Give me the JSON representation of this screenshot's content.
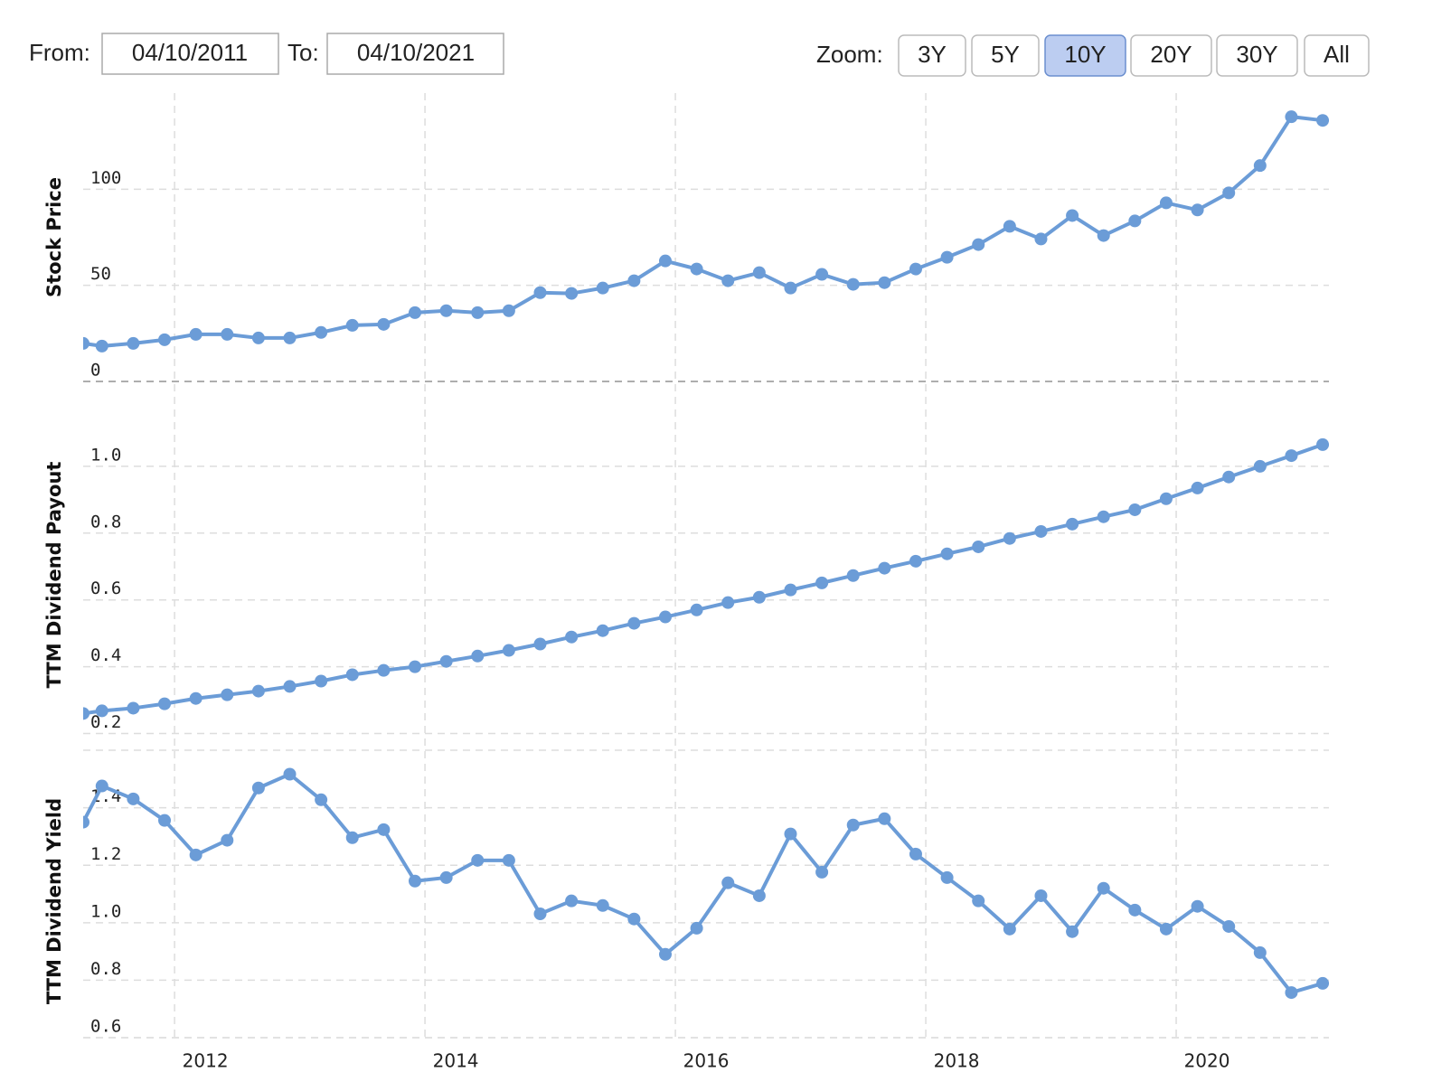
{
  "controls": {
    "from_label": "From:",
    "from_value": "04/10/2011",
    "to_label": "To:",
    "to_value": "04/10/2021",
    "zoom_label": "Zoom:",
    "zoom_options": [
      "3Y",
      "5Y",
      "10Y",
      "20Y",
      "30Y",
      "All"
    ],
    "zoom_active": "10Y"
  },
  "chart_data": [
    {
      "type": "line",
      "y_label": "Stock Price",
      "color": "#6b9cd7",
      "grid": true,
      "x": [
        2011.27,
        2011.42,
        2011.67,
        2011.92,
        2012.17,
        2012.42,
        2012.67,
        2012.92,
        2013.17,
        2013.42,
        2013.67,
        2013.92,
        2014.17,
        2014.42,
        2014.67,
        2014.92,
        2015.17,
        2015.42,
        2015.67,
        2015.92,
        2016.17,
        2016.42,
        2016.67,
        2016.92,
        2017.17,
        2017.42,
        2017.67,
        2017.92,
        2018.17,
        2018.42,
        2018.67,
        2018.92,
        2019.17,
        2019.42,
        2019.67,
        2019.92,
        2020.17,
        2020.42,
        2020.67,
        2020.92,
        2021.17
      ],
      "values": [
        19.8,
        18.4,
        19.8,
        21.7,
        24.5,
        24.5,
        22.6,
        22.6,
        25.5,
        29.2,
        29.7,
        35.8,
        36.8,
        35.8,
        36.8,
        46.2,
        45.8,
        48.6,
        52.4,
        62.7,
        58.5,
        52.4,
        56.6,
        48.6,
        55.7,
        50.5,
        51.4,
        58.5,
        64.6,
        71.2,
        80.7,
        74.1,
        86.3,
        75.9,
        83.5,
        92.9,
        89.2,
        98.1,
        112.3,
        137.7,
        135.8
      ],
      "xlim": [
        2011.27,
        2021.22
      ],
      "ylim": [
        0,
        150
      ],
      "yticks": [
        0,
        50,
        100
      ]
    },
    {
      "type": "line",
      "y_label": "TTM Dividend Payout",
      "color": "#6b9cd7",
      "grid": true,
      "x": [
        2011.27,
        2011.42,
        2011.67,
        2011.92,
        2012.17,
        2012.42,
        2012.67,
        2012.92,
        2013.17,
        2013.42,
        2013.67,
        2013.92,
        2014.17,
        2014.42,
        2014.67,
        2014.92,
        2015.17,
        2015.42,
        2015.67,
        2015.92,
        2016.17,
        2016.42,
        2016.67,
        2016.92,
        2017.17,
        2017.42,
        2017.67,
        2017.92,
        2018.17,
        2018.42,
        2018.67,
        2018.92,
        2019.17,
        2019.42,
        2019.67,
        2019.92,
        2020.17,
        2020.42,
        2020.67,
        2020.92,
        2021.17
      ],
      "values": [
        0.26,
        0.268,
        0.276,
        0.289,
        0.305,
        0.316,
        0.327,
        0.341,
        0.357,
        0.376,
        0.389,
        0.4,
        0.416,
        0.432,
        0.449,
        0.468,
        0.489,
        0.508,
        0.53,
        0.549,
        0.57,
        0.592,
        0.608,
        0.63,
        0.651,
        0.673,
        0.695,
        0.716,
        0.738,
        0.759,
        0.784,
        0.805,
        0.827,
        0.849,
        0.87,
        0.903,
        0.935,
        0.968,
        1.0,
        1.032,
        1.065
      ],
      "xlim": [
        2011.27,
        2021.22
      ],
      "ylim": [
        0.15,
        1.2
      ],
      "yticks": [
        {
          "value": 0.2,
          "label": "0.2"
        },
        {
          "value": 0.4,
          "label": "0.4"
        },
        {
          "value": 0.6,
          "label": "0.6"
        },
        {
          "value": 0.8,
          "label": "0.8"
        },
        {
          "value": 1.0,
          "label": "1.0"
        }
      ]
    },
    {
      "type": "line",
      "y_label": "TTM Dividend Yield",
      "color": "#6b9cd7",
      "grid": true,
      "x": [
        2011.27,
        2011.42,
        2011.67,
        2011.92,
        2012.17,
        2012.42,
        2012.67,
        2012.92,
        2013.17,
        2013.42,
        2013.67,
        2013.92,
        2014.17,
        2014.42,
        2014.67,
        2014.92,
        2015.17,
        2015.42,
        2015.67,
        2015.92,
        2016.17,
        2016.42,
        2016.67,
        2016.92,
        2017.17,
        2017.42,
        2017.67,
        2017.92,
        2018.17,
        2018.42,
        2018.67,
        2018.92,
        2019.17,
        2019.42,
        2019.67,
        2019.92,
        2020.17,
        2020.42,
        2020.67,
        2020.92,
        2021.17
      ],
      "values": [
        1.35,
        1.476,
        1.431,
        1.356,
        1.236,
        1.287,
        1.469,
        1.517,
        1.428,
        1.296,
        1.324,
        1.145,
        1.157,
        1.217,
        1.217,
        1.031,
        1.076,
        1.06,
        1.013,
        0.89,
        0.981,
        1.139,
        1.094,
        1.309,
        1.176,
        1.34,
        1.362,
        1.239,
        1.157,
        1.076,
        0.978,
        1.094,
        0.969,
        1.12,
        1.044,
        0.978,
        1.057,
        0.987,
        0.896,
        0.757,
        0.789
      ],
      "xlim": [
        2011.27,
        2021.22
      ],
      "ylim": [
        0.6,
        1.55
      ],
      "yticks": [
        0.6,
        0.8,
        {
          "value": 1.0,
          "label": "1.0"
        },
        1.2,
        1.4
      ],
      "xticks": [
        2012,
        2014,
        2016,
        2018,
        2020
      ]
    }
  ]
}
